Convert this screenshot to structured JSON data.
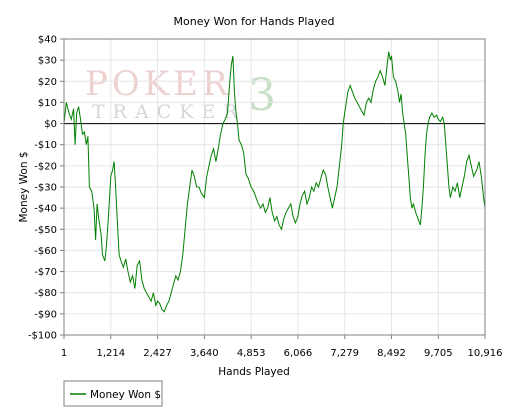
{
  "chart_data": {
    "type": "line",
    "title": "Money Won for Hands Played",
    "xlabel": "Hands Played",
    "ylabel": "Money Won $",
    "xlim": [
      1,
      10916
    ],
    "ylim": [
      -100,
      40
    ],
    "x_ticks": [
      1,
      1214,
      2427,
      3640,
      4853,
      6066,
      7279,
      8492,
      9705,
      10916
    ],
    "x_tick_labels": [
      "1",
      "1,214",
      "2,427",
      "3,640",
      "4,853",
      "6,066",
      "7,279",
      "8,492",
      "9,705",
      "10,916"
    ],
    "y_ticks": [
      40,
      30,
      20,
      10,
      0,
      -10,
      -20,
      -30,
      -40,
      -50,
      -60,
      -70,
      -80,
      -90,
      -100
    ],
    "y_tick_labels": [
      "$40",
      "$30",
      "$20",
      "$10",
      "$0",
      "-$10",
      "-$20",
      "-$30",
      "-$40",
      "-$50",
      "-$60",
      "-$70",
      "-$80",
      "-$90",
      "-$100"
    ],
    "grid": true,
    "legend_position": "bottom-left",
    "series": [
      {
        "name": "Money Won $",
        "color": "#008000",
        "points": [
          [
            1,
            0
          ],
          [
            60,
            10
          ],
          [
            130,
            5
          ],
          [
            190,
            2
          ],
          [
            250,
            7
          ],
          [
            290,
            -10
          ],
          [
            330,
            5
          ],
          [
            380,
            8
          ],
          [
            430,
            2
          ],
          [
            480,
            -5
          ],
          [
            530,
            -4
          ],
          [
            580,
            -10
          ],
          [
            620,
            -6
          ],
          [
            660,
            -30
          ],
          [
            720,
            -32
          ],
          [
            780,
            -40
          ],
          [
            820,
            -55
          ],
          [
            860,
            -38
          ],
          [
            900,
            -45
          ],
          [
            960,
            -52
          ],
          [
            1000,
            -62
          ],
          [
            1060,
            -65
          ],
          [
            1100,
            -58
          ],
          [
            1150,
            -45
          ],
          [
            1214,
            -25
          ],
          [
            1260,
            -22
          ],
          [
            1300,
            -18
          ],
          [
            1340,
            -30
          ],
          [
            1380,
            -45
          ],
          [
            1430,
            -62
          ],
          [
            1480,
            -65
          ],
          [
            1540,
            -68
          ],
          [
            1600,
            -64
          ],
          [
            1660,
            -70
          ],
          [
            1720,
            -75
          ],
          [
            1780,
            -72
          ],
          [
            1840,
            -78
          ],
          [
            1900,
            -67
          ],
          [
            1960,
            -65
          ],
          [
            2020,
            -74
          ],
          [
            2080,
            -78
          ],
          [
            2140,
            -80
          ],
          [
            2200,
            -82
          ],
          [
            2260,
            -84
          ],
          [
            2320,
            -80
          ],
          [
            2380,
            -86
          ],
          [
            2427,
            -84
          ],
          [
            2480,
            -85
          ],
          [
            2540,
            -88
          ],
          [
            2600,
            -89
          ],
          [
            2660,
            -86
          ],
          [
            2720,
            -84
          ],
          [
            2780,
            -80
          ],
          [
            2840,
            -76
          ],
          [
            2900,
            -72
          ],
          [
            2960,
            -74
          ],
          [
            3020,
            -70
          ],
          [
            3080,
            -62
          ],
          [
            3140,
            -50
          ],
          [
            3200,
            -38
          ],
          [
            3260,
            -30
          ],
          [
            3320,
            -22
          ],
          [
            3380,
            -25
          ],
          [
            3440,
            -30
          ],
          [
            3500,
            -30
          ],
          [
            3560,
            -33
          ],
          [
            3640,
            -35
          ],
          [
            3700,
            -25
          ],
          [
            3760,
            -20
          ],
          [
            3820,
            -15
          ],
          [
            3880,
            -12
          ],
          [
            3940,
            -18
          ],
          [
            4000,
            -12
          ],
          [
            4060,
            -5
          ],
          [
            4120,
            0
          ],
          [
            4180,
            2
          ],
          [
            4240,
            5
          ],
          [
            4300,
            20
          ],
          [
            4340,
            28
          ],
          [
            4380,
            32
          ],
          [
            4420,
            15
          ],
          [
            4460,
            5
          ],
          [
            4500,
            0
          ],
          [
            4540,
            -8
          ],
          [
            4600,
            -10
          ],
          [
            4660,
            -14
          ],
          [
            4720,
            -24
          ],
          [
            4780,
            -26
          ],
          [
            4853,
            -30
          ],
          [
            4920,
            -32
          ],
          [
            4980,
            -35
          ],
          [
            5040,
            -38
          ],
          [
            5100,
            -40
          ],
          [
            5160,
            -38
          ],
          [
            5220,
            -42
          ],
          [
            5280,
            -40
          ],
          [
            5340,
            -35
          ],
          [
            5400,
            -42
          ],
          [
            5460,
            -46
          ],
          [
            5520,
            -44
          ],
          [
            5580,
            -48
          ],
          [
            5640,
            -50
          ],
          [
            5700,
            -45
          ],
          [
            5760,
            -42
          ],
          [
            5820,
            -40
          ],
          [
            5880,
            -38
          ],
          [
            5940,
            -44
          ],
          [
            6000,
            -47
          ],
          [
            6066,
            -44
          ],
          [
            6120,
            -38
          ],
          [
            6180,
            -34
          ],
          [
            6240,
            -32
          ],
          [
            6300,
            -38
          ],
          [
            6360,
            -35
          ],
          [
            6420,
            -30
          ],
          [
            6480,
            -32
          ],
          [
            6540,
            -28
          ],
          [
            6600,
            -30
          ],
          [
            6660,
            -26
          ],
          [
            6720,
            -22
          ],
          [
            6780,
            -24
          ],
          [
            6840,
            -30
          ],
          [
            6900,
            -35
          ],
          [
            6960,
            -40
          ],
          [
            7020,
            -35
          ],
          [
            7080,
            -30
          ],
          [
            7140,
            -20
          ],
          [
            7200,
            -10
          ],
          [
            7240,
            0
          ],
          [
            7279,
            5
          ],
          [
            7320,
            10
          ],
          [
            7360,
            15
          ],
          [
            7420,
            18
          ],
          [
            7480,
            15
          ],
          [
            7540,
            12
          ],
          [
            7600,
            10
          ],
          [
            7660,
            8
          ],
          [
            7720,
            6
          ],
          [
            7780,
            4
          ],
          [
            7840,
            10
          ],
          [
            7900,
            12
          ],
          [
            7960,
            10
          ],
          [
            8020,
            16
          ],
          [
            8080,
            20
          ],
          [
            8140,
            22
          ],
          [
            8200,
            25
          ],
          [
            8260,
            22
          ],
          [
            8320,
            18
          ],
          [
            8380,
            28
          ],
          [
            8420,
            34
          ],
          [
            8460,
            30
          ],
          [
            8492,
            32
          ],
          [
            8540,
            22
          ],
          [
            8600,
            20
          ],
          [
            8660,
            15
          ],
          [
            8700,
            10
          ],
          [
            8740,
            14
          ],
          [
            8780,
            5
          ],
          [
            8820,
            0
          ],
          [
            8860,
            -5
          ],
          [
            8900,
            -15
          ],
          [
            8940,
            -25
          ],
          [
            8980,
            -35
          ],
          [
            9020,
            -40
          ],
          [
            9060,
            -38
          ],
          [
            9120,
            -42
          ],
          [
            9180,
            -45
          ],
          [
            9240,
            -48
          ],
          [
            9280,
            -40
          ],
          [
            9320,
            -30
          ],
          [
            9360,
            -15
          ],
          [
            9400,
            -5
          ],
          [
            9440,
            0
          ],
          [
            9480,
            3
          ],
          [
            9540,
            5
          ],
          [
            9600,
            3
          ],
          [
            9660,
            4
          ],
          [
            9705,
            2
          ],
          [
            9760,
            1
          ],
          [
            9820,
            3
          ],
          [
            9860,
            0
          ],
          [
            9900,
            -10
          ],
          [
            9940,
            -20
          ],
          [
            9980,
            -30
          ],
          [
            10020,
            -35
          ],
          [
            10080,
            -30
          ],
          [
            10140,
            -32
          ],
          [
            10200,
            -28
          ],
          [
            10260,
            -35
          ],
          [
            10320,
            -30
          ],
          [
            10380,
            -25
          ],
          [
            10440,
            -18
          ],
          [
            10500,
            -15
          ],
          [
            10560,
            -20
          ],
          [
            10620,
            -25
          ],
          [
            10700,
            -22
          ],
          [
            10760,
            -18
          ],
          [
            10820,
            -25
          ],
          [
            10880,
            -35
          ],
          [
            10916,
            -40
          ]
        ]
      }
    ]
  },
  "watermark": {
    "top_text": "POKER",
    "bottom_text": "TRACKER",
    "numeral": "3"
  },
  "legend": {
    "items": [
      {
        "label": "Money Won $",
        "color": "#008000"
      }
    ]
  }
}
